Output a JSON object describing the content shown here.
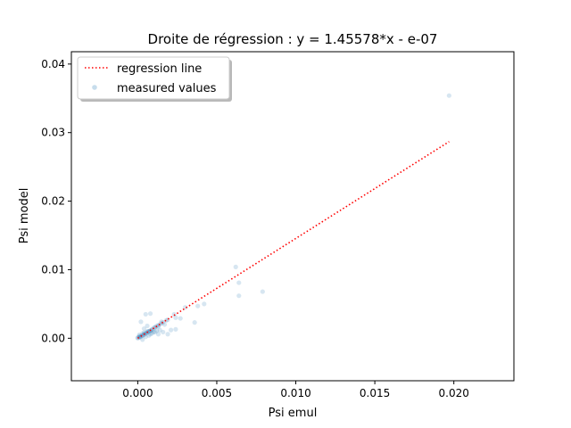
{
  "chart_data": {
    "type": "scatter",
    "title": "Droite de régression : y = 1.45578*x - e-07",
    "xlabel": "Psi emul",
    "ylabel": "Psi model",
    "xlim": [
      -0.0042,
      0.0238
    ],
    "ylim": [
      -0.0062,
      0.0418
    ],
    "x_ticks": [
      0.0,
      0.005,
      0.01,
      0.015,
      0.02
    ],
    "x_tick_labels": [
      "0.000",
      "0.005",
      "0.010",
      "0.015",
      "0.020"
    ],
    "y_ticks": [
      0.0,
      0.01,
      0.02,
      0.03,
      0.04
    ],
    "y_tick_labels": [
      "0.00",
      "0.01",
      "0.02",
      "0.03",
      "0.04"
    ],
    "grid": false,
    "legend_position": "top-left",
    "series": [
      {
        "name": "regression line",
        "kind": "line",
        "style": "dotted",
        "color": "#ff0000",
        "x": [
          0.0,
          0.0197
        ],
        "y": [
          0.0,
          0.02868
        ]
      },
      {
        "name": "measured values",
        "kind": "scatter",
        "color": "#1f77b4",
        "alpha": 0.18,
        "x": [
          0.0197,
          0.0062,
          0.0064,
          0.0064,
          0.0079,
          0.0042,
          0.0038,
          0.0036,
          0.0024,
          0.0027,
          0.0024,
          0.0021,
          0.0017,
          0.0019,
          0.0023,
          0.003,
          0.0019,
          0.0015,
          0.0013,
          0.0011,
          0.0009,
          0.0008,
          0.0007,
          0.0006,
          0.0005,
          0.0004,
          0.0003,
          0.0002,
          0.0001,
          0.0,
          0.0,
          0.0001,
          0.0002,
          0.0003,
          0.0004,
          0.0005,
          0.0006,
          0.0007,
          0.0008,
          0.0009,
          0.001,
          0.0011,
          0.0012,
          0.0013,
          0.0014,
          0.0015,
          0.0016,
          0.0018,
          0.0005,
          0.0008,
          0.001,
          0.0012,
          0.0003,
          0.0006,
          0.0009,
          0.0001,
          0.0004,
          0.0007,
          0.0011,
          0.0014,
          0.0002,
          0.0005,
          0.0008,
          0.0004,
          0.0006,
          0.0013,
          0.0016,
          0.0001,
          0.0003
        ],
        "y": [
          0.0354,
          0.0104,
          0.0081,
          0.0062,
          0.0068,
          0.005,
          0.0047,
          0.0023,
          0.003,
          0.0029,
          0.0013,
          0.0012,
          0.002,
          0.0027,
          0.0035,
          0.0045,
          0.0006,
          0.0024,
          0.0017,
          0.0016,
          0.0012,
          0.0011,
          0.001,
          0.0009,
          0.0007,
          0.0006,
          0.0004,
          0.0003,
          0.0002,
          0.0,
          0.0001,
          0.0001,
          0.0002,
          0.0004,
          0.0005,
          0.0007,
          0.0008,
          0.001,
          0.0011,
          0.0013,
          0.0015,
          0.0016,
          0.0018,
          0.0019,
          0.002,
          0.0022,
          0.0023,
          0.0026,
          0.0002,
          0.0006,
          0.0009,
          0.0011,
          0.0007,
          0.001,
          0.0007,
          0.0003,
          0.0008,
          0.0004,
          0.0009,
          0.0012,
          0.0024,
          0.0035,
          0.0036,
          0.0014,
          0.0018,
          0.0006,
          0.0009,
          0.0005,
          -0.0002
        ]
      }
    ]
  }
}
